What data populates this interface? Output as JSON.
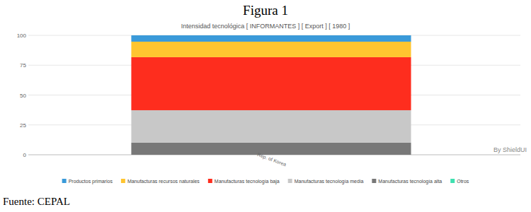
{
  "chart_data": {
    "type": "bar",
    "title": "Figura 1",
    "subtitle": "Intensidad tecnológica [ INFORMANTES ] [ Export ] [ 1980 ]",
    "source": "Fuente: CEPAL",
    "watermark": "By ShieldUI",
    "categories": [
      "Rep. of Korea"
    ],
    "stacked": true,
    "grid": true,
    "legend": "bottom",
    "ylim": [
      0,
      100
    ],
    "yticks": [
      0,
      25,
      50,
      75,
      100
    ],
    "series": [
      {
        "name": "Productos primarios",
        "color": "#3a9ad9",
        "values": [
          5.3
        ]
      },
      {
        "name": "Manufacturas recursos naturales",
        "color": "#ffc530",
        "values": [
          13
        ]
      },
      {
        "name": "Manufacturas tecnología baja",
        "color": "#fe2d1e",
        "values": [
          44.4
        ]
      },
      {
        "name": "Manufacturas tecnología media",
        "color": "#c8c8c8",
        "values": [
          27.2
        ]
      },
      {
        "name": "Manufacturas tecnología alta",
        "color": "#787878",
        "values": [
          10.1
        ]
      },
      {
        "name": "Otros",
        "color": "#3fe0b0",
        "values": [
          0
        ]
      }
    ]
  }
}
